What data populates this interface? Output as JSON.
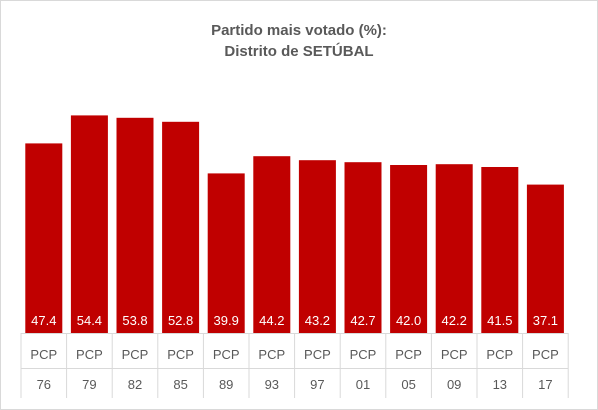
{
  "chart_data": {
    "type": "bar",
    "title": "Partido mais votado (%):",
    "subtitle": "Distrito de SETÚBAL",
    "xlabel": "",
    "ylabel": "",
    "categories": [
      {
        "party": "PCP",
        "year": "76"
      },
      {
        "party": "PCP",
        "year": "79"
      },
      {
        "party": "PCP",
        "year": "82"
      },
      {
        "party": "PCP",
        "year": "85"
      },
      {
        "party": "PCP",
        "year": "89"
      },
      {
        "party": "PCP",
        "year": "93"
      },
      {
        "party": "PCP",
        "year": "97"
      },
      {
        "party": "PCP",
        "year": "01"
      },
      {
        "party": "PCP",
        "year": "05"
      },
      {
        "party": "PCP",
        "year": "09"
      },
      {
        "party": "PCP",
        "year": "13"
      },
      {
        "party": "PCP",
        "year": "17"
      }
    ],
    "values": [
      47.4,
      54.4,
      53.8,
      52.8,
      39.9,
      44.2,
      43.2,
      42.7,
      42.0,
      42.2,
      41.5,
      37.1
    ],
    "value_labels": [
      "47.4",
      "54.4",
      "53.8",
      "52.8",
      "39.9",
      "44.2",
      "43.2",
      "42.7",
      "42.0",
      "42.2",
      "41.5",
      "37.1"
    ],
    "ylim": [
      0,
      60
    ],
    "grid": false,
    "legend": "none",
    "bar_color": "#c00000",
    "label_color": "#ffffff",
    "axis_line_color": "#d9d9d9",
    "text_color": "#595959"
  }
}
